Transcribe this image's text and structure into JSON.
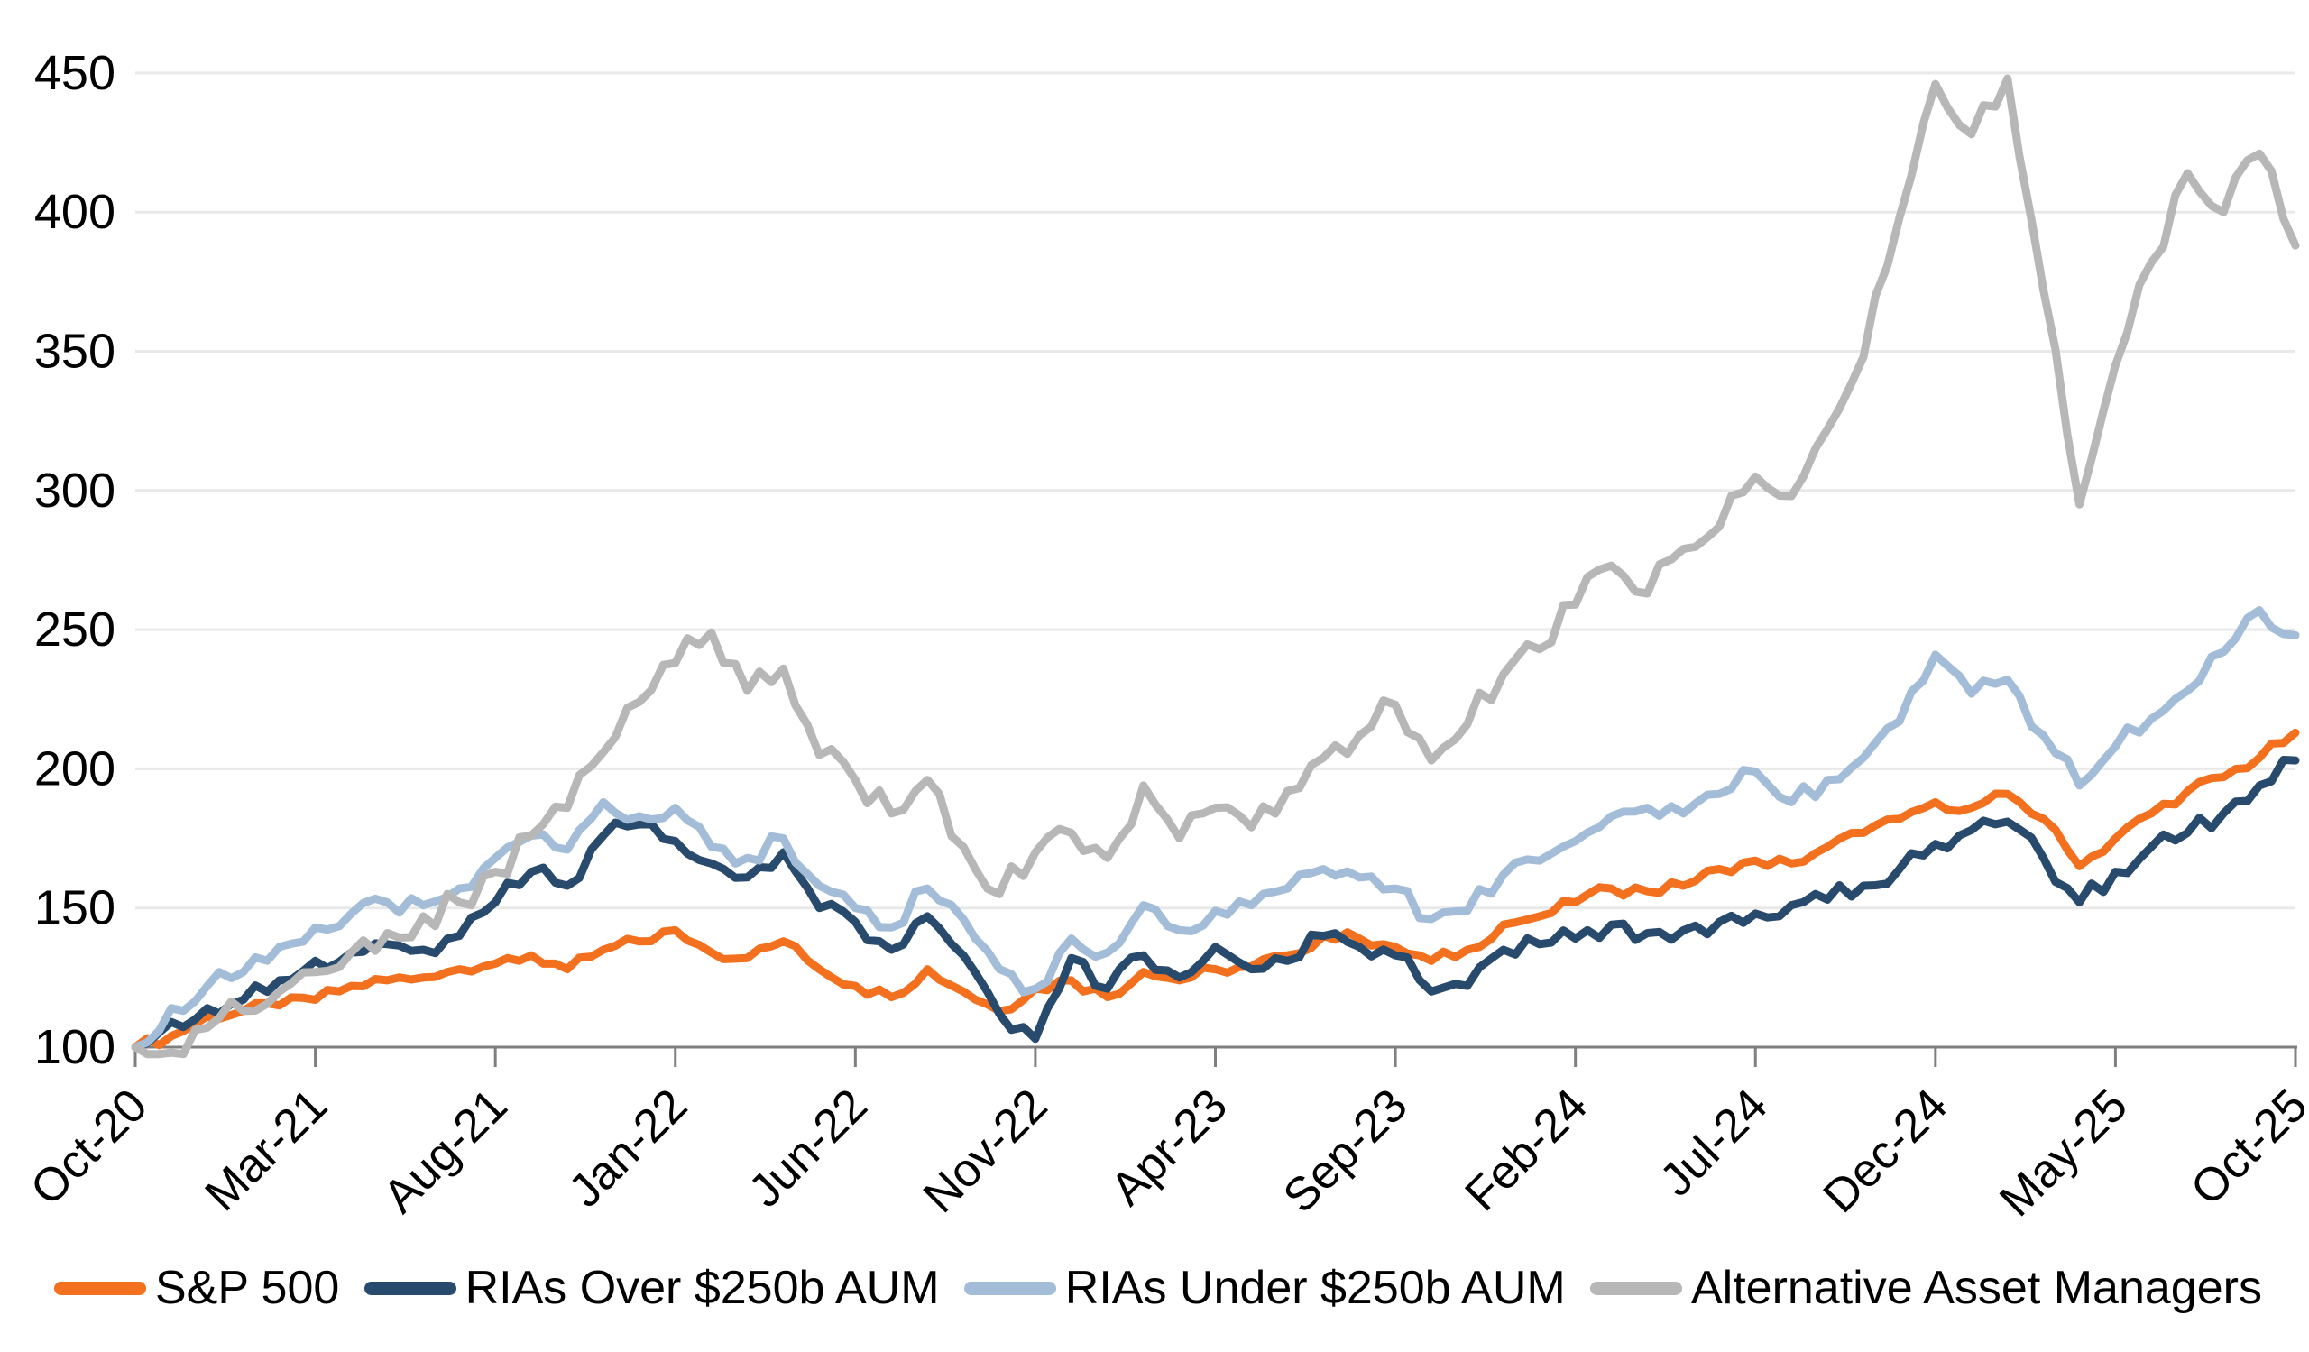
{
  "chart_data": {
    "type": "line",
    "title": "",
    "xlabel": "",
    "ylabel": "",
    "index_base_note": "indexed to 100 at Oct-20",
    "grid": true,
    "legend_position": "bottom",
    "colors": {
      "gridline": "#e9e9e9",
      "axis": "#7f7f7f",
      "tick_text": "#000000"
    },
    "y_axis": {
      "min": 100,
      "max": 450,
      "tick_step": 50,
      "tick_labels": [
        "100",
        "150",
        "200",
        "250",
        "300",
        "350",
        "400",
        "450"
      ]
    },
    "x_axis": {
      "start_month": "Oct-20",
      "end_month": "Oct-25",
      "months_total": 60,
      "tick_interval_months": 5,
      "tick_labels": [
        "Oct-20",
        "Mar-21",
        "Aug-21",
        "Jan-22",
        "Jun-22",
        "Nov-22",
        "Apr-23",
        "Sep-23",
        "Feb-24",
        "Jul-24",
        "Dec-24",
        "May-25",
        "Oct-25"
      ]
    },
    "series": [
      {
        "name": "S&P 500",
        "slug": "sp500",
        "color": "#F3701E",
        "wiggle": 2.2,
        "monthly_values": [
          100,
          104,
          111,
          113,
          115,
          117,
          122,
          124,
          125,
          128,
          130,
          133,
          128,
          135,
          138,
          142,
          134,
          132,
          138,
          128,
          122,
          118,
          128,
          120,
          113,
          121,
          124,
          118,
          127,
          124,
          128,
          129,
          133,
          140,
          139,
          136,
          131,
          135,
          144,
          147,
          152,
          157,
          156,
          158,
          164,
          167,
          166,
          172,
          177,
          182,
          188,
          186,
          191,
          182,
          165,
          175,
          184,
          192,
          197,
          204,
          213
        ]
      },
      {
        "name": "RIAs Over $250b AUM",
        "slug": "rias-over-250b",
        "color": "#274A6D",
        "wiggle": 3.6,
        "monthly_values": [
          100,
          109,
          114,
          117,
          124,
          131,
          134,
          137,
          135,
          140,
          152,
          163,
          158,
          176,
          180,
          174,
          166,
          161,
          170,
          150,
          145,
          135,
          147,
          133,
          112,
          103,
          132,
          121,
          133,
          125,
          136,
          128,
          131,
          140,
          136,
          133,
          120,
          122,
          135,
          137,
          139,
          144,
          141,
          142,
          145,
          148,
          151,
          153,
          158,
          164,
          173,
          178,
          181,
          168,
          152,
          163,
          172,
          177,
          184,
          194,
          203
        ]
      },
      {
        "name": "RIAs Under $250b AUM",
        "slug": "rias-under-250b",
        "color": "#A3BDD8",
        "wiggle": 3.6,
        "monthly_values": [
          100,
          114,
          122,
          127,
          136,
          143,
          148,
          152,
          151,
          157,
          168,
          176,
          171,
          188,
          183,
          186,
          172,
          168,
          175,
          158,
          150,
          143,
          157,
          146,
          128,
          121,
          139,
          134,
          151,
          142,
          149,
          151,
          157,
          164,
          161,
          157,
          146,
          149,
          162,
          167,
          174,
          183,
          186,
          184,
          191,
          199,
          188,
          196,
          204,
          217,
          241,
          227,
          232,
          212,
          194,
          208,
          218,
          228,
          242,
          257,
          248
        ]
      },
      {
        "name": "Alternative Asset Managers",
        "slug": "alt-asset-managers",
        "color": "#B7B7B7",
        "wiggle": 5.5,
        "monthly_values": [
          100,
          98,
          107,
          113,
          120,
          127,
          134,
          141,
          147,
          152,
          163,
          176,
          186,
          206,
          224,
          238,
          249,
          228,
          236,
          205,
          196,
          184,
          196,
          172,
          155,
          170,
          177,
          168,
          194,
          175,
          186,
          179,
          192,
          204,
          212,
          223,
          203,
          216,
          234,
          243,
          259,
          273,
          263,
          279,
          287,
          305,
          298,
          322,
          348,
          398,
          446,
          428,
          448,
          372,
          295,
          345,
          382,
          414,
          400,
          421,
          388
        ]
      }
    ]
  },
  "legend": {
    "items": [
      "S&P 500",
      "RIAs Over $250b AUM",
      "RIAs Under $250b AUM",
      "Alternative Asset Managers"
    ]
  }
}
